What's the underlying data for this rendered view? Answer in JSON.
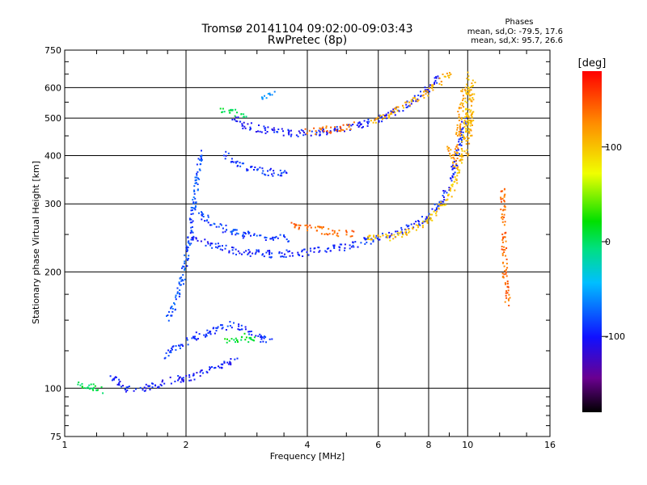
{
  "chart_data": {
    "type": "scatter",
    "title": "Tromsø 20141104 09:02:00-09:03:43",
    "subtitle": "RwPretec (8p)",
    "xlabel": "Frequency [MHz]",
    "ylabel": "Stationary phase Virtual Height [km]",
    "x_scale": "log",
    "y_scale": "log",
    "xlim": [
      1,
      16
    ],
    "ylim": [
      75,
      750
    ],
    "x_ticks": [
      1,
      2,
      4,
      6,
      8,
      10,
      16
    ],
    "x_tick_labels": [
      "1",
      "2",
      "4",
      "6",
      "8",
      "10",
      "16"
    ],
    "y_ticks": [
      75,
      100,
      200,
      300,
      400,
      500,
      600,
      750
    ],
    "y_tick_labels": [
      "75",
      "100",
      "200",
      "300",
      "400",
      "500",
      "600",
      "750"
    ],
    "grid": true,
    "stats_header": "Phases",
    "stats_lines": [
      "mean, sd,O: -79.5, 17.6",
      "mean, sd,X:  95.7, 26.6"
    ],
    "colorbar": {
      "label": "[deg]",
      "range": [
        -180,
        180
      ],
      "ticks": [
        100,
        0,
        -100
      ],
      "tick_labels": [
        "100",
        "0",
        "-100"
      ]
    },
    "traces": [
      {
        "points": [
          [
            1.06,
            104
          ],
          [
            1.25,
            98
          ]
        ],
        "phase": 5
      },
      {
        "points": [
          [
            1.3,
            108
          ],
          [
            1.4,
            100
          ],
          [
            1.5,
            99
          ],
          [
            1.65,
            101
          ],
          [
            1.8,
            104
          ],
          [
            1.95,
            106
          ],
          [
            2.05,
            106
          ],
          [
            2.25,
            110
          ],
          [
            2.5,
            116
          ],
          [
            2.7,
            120
          ]
        ],
        "phase": -100
      },
      {
        "points": [
          [
            1.75,
            120
          ],
          [
            1.9,
            128
          ],
          [
            2.1,
            136
          ],
          [
            2.3,
            140
          ],
          [
            2.6,
            146
          ],
          [
            2.85,
            141
          ],
          [
            3.1,
            134
          ],
          [
            3.3,
            135
          ]
        ],
        "phase": -90
      },
      {
        "points": [
          [
            2.5,
            132
          ],
          [
            2.8,
            136
          ],
          [
            3.0,
            132
          ]
        ],
        "phase": 10
      },
      {
        "points": [
          [
            1.8,
            150
          ],
          [
            1.9,
            170
          ],
          [
            1.95,
            190
          ],
          [
            2.0,
            210
          ],
          [
            2.05,
            250
          ],
          [
            2.1,
            310
          ],
          [
            2.15,
            370
          ],
          [
            2.2,
            410
          ]
        ],
        "phase": -80
      },
      {
        "points": [
          [
            2.05,
            250
          ],
          [
            2.2,
            240
          ],
          [
            2.4,
            232
          ],
          [
            2.7,
            226
          ],
          [
            3.0,
            223
          ],
          [
            3.4,
            222
          ],
          [
            3.8,
            224
          ],
          [
            4.2,
            226
          ],
          [
            4.7,
            230
          ],
          [
            5.3,
            236
          ],
          [
            5.9,
            244
          ],
          [
            6.5,
            250
          ],
          [
            7.2,
            260
          ],
          [
            7.8,
            274
          ],
          [
            8.4,
            295
          ],
          [
            8.9,
            330
          ],
          [
            9.3,
            380
          ],
          [
            9.6,
            440
          ],
          [
            9.8,
            500
          ]
        ],
        "phase": -95
      },
      {
        "points": [
          [
            2.1,
            290
          ],
          [
            2.3,
            270
          ],
          [
            2.5,
            258
          ],
          [
            2.8,
            250
          ],
          [
            3.2,
            246
          ],
          [
            3.6,
            244
          ]
        ],
        "phase": -85
      },
      {
        "points": [
          [
            3.6,
            268
          ],
          [
            3.9,
            262
          ],
          [
            4.2,
            257
          ],
          [
            4.5,
            254
          ],
          [
            4.9,
            252
          ],
          [
            5.2,
            252
          ]
        ],
        "phase": 140
      },
      {
        "points": [
          [
            5.6,
            244
          ],
          [
            6.3,
            246
          ],
          [
            7.0,
            253
          ],
          [
            7.7,
            264
          ],
          [
            8.3,
            282
          ],
          [
            8.9,
            310
          ],
          [
            9.4,
            350
          ],
          [
            9.7,
            400
          ],
          [
            9.9,
            470
          ],
          [
            10.0,
            560
          ],
          [
            10.05,
            650
          ]
        ],
        "phase": 100
      },
      {
        "points": [
          [
            9.0,
            420
          ],
          [
            9.3,
            380
          ],
          [
            9.6,
            520
          ],
          [
            9.8,
            600
          ]
        ],
        "phase": 120
      },
      {
        "points": [
          [
            10.0,
            400
          ],
          [
            10.2,
            500
          ],
          [
            10.3,
            620
          ]
        ],
        "phase": 110
      },
      {
        "points": [
          [
            2.5,
            405
          ],
          [
            2.6,
            385
          ],
          [
            2.8,
            372
          ],
          [
            3.0,
            365
          ],
          [
            3.3,
            362
          ],
          [
            3.6,
            362
          ]
        ],
        "phase": -90
      },
      {
        "points": [
          [
            2.6,
            505
          ],
          [
            2.8,
            480
          ],
          [
            3.1,
            466
          ],
          [
            3.5,
            458
          ],
          [
            4.0,
            458
          ],
          [
            4.5,
            462
          ],
          [
            5.1,
            472
          ],
          [
            5.6,
            485
          ],
          [
            6.1,
            500
          ],
          [
            6.7,
            522
          ],
          [
            7.2,
            545
          ],
          [
            7.7,
            575
          ],
          [
            8.1,
            610
          ],
          [
            8.5,
            645
          ]
        ],
        "phase": -100
      },
      {
        "points": [
          [
            4.0,
            460
          ],
          [
            4.6,
            468
          ],
          [
            5.2,
            480
          ]
        ],
        "phase": 140
      },
      {
        "points": [
          [
            5.8,
            495
          ],
          [
            6.4,
            512
          ],
          [
            7.0,
            535
          ],
          [
            7.6,
            565
          ],
          [
            8.2,
            600
          ],
          [
            8.8,
            640
          ],
          [
            9.2,
            650
          ]
        ],
        "phase": 110
      },
      {
        "points": [
          [
            2.4,
            530
          ],
          [
            2.6,
            520
          ],
          [
            2.8,
            505
          ]
        ],
        "phase": 0
      },
      {
        "points": [
          [
            3.05,
            570
          ],
          [
            3.3,
            578
          ]
        ],
        "phase": -60
      },
      {
        "points": [
          [
            12.2,
            325
          ],
          [
            12.4,
            190
          ],
          [
            12.6,
            165
          ]
        ],
        "phase": 140
      }
    ]
  }
}
